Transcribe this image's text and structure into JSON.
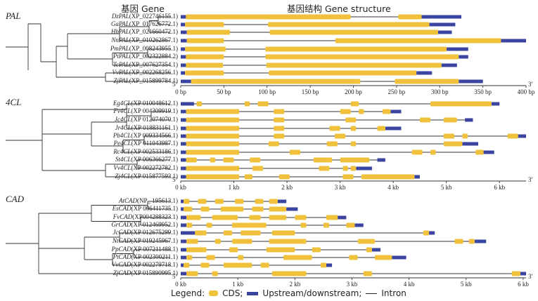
{
  "header": {
    "gene_col": "基因 Gene",
    "structure_col": "基因结构 Gene structure"
  },
  "colors": {
    "cds": "#f0c23b",
    "utr": "#3b45a0",
    "intron": "#333333"
  },
  "panels": [
    {
      "family": "PAL",
      "axis": {
        "max": 400,
        "ticks": [
          "0 bp",
          "50 bp",
          "100 bp",
          "150 bp",
          "200 bp",
          "250 bp",
          "300 bp",
          "350 bp",
          "400 bp"
        ],
        "start_mark": "5′",
        "end_mark": "3′"
      },
      "genes": [
        {
          "abbr": "Dz",
          "name": "PAL",
          "acc": "(XP_022746155.1)",
          "length": 325,
          "utr": [
            [
              0,
              6
            ],
            [
              279,
              325
            ]
          ],
          "cds": [
            [
              6,
              197
            ],
            [
              252,
              279
            ]
          ]
        },
        {
          "abbr": "Ga",
          "name": "PAL",
          "acc": "(XP_017626772.1)",
          "length": 318,
          "utr": [
            [
              0,
              5
            ],
            [
              288,
              318
            ]
          ],
          "cds": [
            [
              5,
              50
            ],
            [
              101,
              288
            ]
          ]
        },
        {
          "abbr": "Hb",
          "name": "PAL",
          "acc": "(XP_021660472.1)",
          "length": 314,
          "utr": [
            [
              0,
              7
            ],
            [
              298,
              314
            ]
          ],
          "cds": [
            [
              7,
              57
            ],
            [
              103,
              298
            ]
          ]
        },
        {
          "abbr": "Nn",
          "name": "PAL",
          "acc": "(XP_010262867.1)",
          "length": 400,
          "utr": [
            [
              0,
              7
            ],
            [
              371,
              400
            ]
          ],
          "cds": [
            [
              7,
              50
            ],
            [
              179,
              371
            ]
          ]
        },
        {
          "abbr": "Pm",
          "name": "PAL",
          "acc": "(XP_008243955.1)",
          "length": 333,
          "utr": [
            [
              0,
              5
            ],
            [
              308,
              333
            ]
          ],
          "cds": [
            [
              5,
              52
            ],
            [
              98,
              308
            ]
          ]
        },
        {
          "abbr": "Pt",
          "name": "PAL",
          "acc": "(XP_002322884.2)",
          "length": 333,
          "utr": [
            [
              0,
              6
            ],
            [
              322,
              333
            ]
          ],
          "cds": [
            [
              6,
              50
            ],
            [
              98,
              322
            ]
          ]
        },
        {
          "abbr": "Tc",
          "name": "PAL",
          "acc": "(XP_007627354.1)",
          "length": 320,
          "utr": [
            [
              0,
              6
            ],
            [
              302,
              320
            ]
          ],
          "cds": [
            [
              6,
              49
            ],
            [
              99,
              302
            ]
          ]
        },
        {
          "abbr": "Vv",
          "name": "PAL",
          "acc": "(XP_002268256.1)",
          "length": 291,
          "utr": [
            [
              0,
              5
            ],
            [
              273,
              291
            ]
          ],
          "cds": [
            [
              5,
              50
            ],
            [
              102,
              273
            ]
          ]
        },
        {
          "abbr": "Zj",
          "name": "PAL",
          "acc": "(XP_015899784.1)",
          "length": 350,
          "utr": [
            [
              0,
              12
            ],
            [
              322,
              350
            ]
          ],
          "cds": [
            [
              12,
              208
            ],
            [
              248,
              322
            ]
          ]
        }
      ]
    },
    {
      "family": "4CL",
      "axis": {
        "max": 6.5,
        "ticks": [
          "0 kb",
          "1 kb",
          "2 kb",
          "3 kb",
          "4 kb",
          "5 kb",
          "6 kb"
        ],
        "start_mark": "5′",
        "end_mark": "3′"
      },
      "genes": [
        {
          "abbr": "Eg",
          "name": "4CL",
          "acc": "(XP 010048612.1)",
          "length": 6.0,
          "utr": [
            [
              0,
              0.25
            ],
            [
              5.85,
              6.0
            ]
          ],
          "cds": [
            [
              0.3,
              0.4
            ],
            [
              1.2,
              1.3
            ],
            [
              1.45,
              1.65
            ],
            [
              3.2,
              3.35
            ],
            [
              4.7,
              5.85
            ]
          ]
        },
        {
          "abbr": "Fv",
          "name": "4CL",
          "acc": "(XP 004309919.1)",
          "length": 4.15,
          "utr": [
            [
              0,
              0.1
            ],
            [
              3.95,
              4.15
            ]
          ],
          "cds": [
            [
              0.1,
              1.1
            ],
            [
              1.75,
              1.95
            ],
            [
              3.0,
              3.2
            ],
            [
              3.35,
              3.45
            ],
            [
              3.8,
              3.95
            ]
          ]
        },
        {
          "abbr": "Jc",
          "name": "4CL",
          "acc": "(XP 012074070.1)",
          "length": 5.5,
          "utr": [
            [
              0,
              0.1
            ],
            [
              5.35,
              5.5
            ]
          ],
          "cds": [
            [
              0.1,
              1.1
            ],
            [
              1.75,
              1.95
            ],
            [
              3.1,
              3.3
            ],
            [
              4.5,
              4.7
            ],
            [
              4.95,
              5.2
            ]
          ]
        },
        {
          "abbr": "Jr",
          "name": "4CL",
          "acc": "(XP 018831161.1)",
          "length": 4.15,
          "utr": [
            [
              0,
              0.1
            ],
            [
              3.85,
              4.15
            ]
          ],
          "cds": [
            [
              0.1,
              1.1
            ],
            [
              1.75,
              1.95
            ],
            [
              2.8,
              3.0
            ],
            [
              3.2,
              3.3
            ],
            [
              3.7,
              3.85
            ]
          ]
        },
        {
          "abbr": "Pb",
          "name": "4CL",
          "acc": "(XP 009334566.1)",
          "length": 6.5,
          "utr": [
            [
              0,
              0.1
            ],
            [
              6.35,
              6.5
            ]
          ],
          "cds": [
            [
              0.1,
              1.1
            ],
            [
              1.75,
              1.95
            ],
            [
              2.9,
              3.1
            ],
            [
              4.95,
              5.15
            ],
            [
              5.3,
              5.4
            ],
            [
              6.15,
              6.35
            ]
          ]
        },
        {
          "abbr": "Pe",
          "name": "4CL",
          "acc": "(XP 011043987.1)",
          "length": 5.6,
          "utr": [
            [
              0,
              0.1
            ],
            [
              5.3,
              5.6
            ]
          ],
          "cds": [
            [
              0.1,
              1.1
            ],
            [
              1.65,
              1.85
            ],
            [
              2.75,
              2.95
            ],
            [
              3.2,
              3.3
            ],
            [
              4.95,
              5.3
            ]
          ]
        },
        {
          "abbr": "Rc",
          "name": "4CL",
          "acc": "(XP 002533186.1)",
          "length": 5.9,
          "utr": [
            [
              0,
              0.1
            ],
            [
              5.7,
              5.9
            ]
          ],
          "cds": [
            [
              0.1,
              1.1
            ],
            [
              2.05,
              2.25
            ],
            [
              4.35,
              4.55
            ],
            [
              4.7,
              4.8
            ],
            [
              5.55,
              5.7
            ]
          ]
        },
        {
          "abbr": "St",
          "name": "4CL",
          "acc": "(XP 006366277.1)",
          "length": 3.85,
          "utr": [
            [
              0,
              0.1
            ],
            [
              3.7,
              3.85
            ]
          ],
          "cds": [
            [
              0.1,
              0.3
            ],
            [
              0.55,
              0.65
            ],
            [
              0.8,
              1.0
            ],
            [
              1.3,
              1.5
            ],
            [
              2.5,
              2.85
            ],
            [
              3.0,
              3.55
            ]
          ]
        },
        {
          "abbr": "Vv",
          "name": "4CL",
          "acc": "(XP 002272782.1)",
          "length": 3.6,
          "utr": [
            [
              0,
              0.1
            ],
            [
              3.3,
              3.6
            ]
          ],
          "cds": [
            [
              0.1,
              1.1
            ],
            [
              1.35,
              1.55
            ],
            [
              2.6,
              2.8
            ],
            [
              3.05,
              3.15
            ],
            [
              3.2,
              3.3
            ]
          ]
        },
        {
          "abbr": "Zj",
          "name": "4CL",
          "acc": "(XP 015877593.1)",
          "length": 4.5,
          "utr": [
            [
              0,
              0.1
            ],
            [
              4.4,
              4.5
            ]
          ],
          "cds": [
            [
              0.1,
              1.1
            ],
            [
              0.95,
              1.1
            ],
            [
              1.2,
              1.35
            ],
            [
              1.85,
              2.05
            ],
            [
              3.05,
              3.25
            ],
            [
              3.4,
              4.4
            ]
          ]
        }
      ]
    },
    {
      "family": "CAD",
      "axis": {
        "max": 6.05,
        "ticks": [
          "0 kb",
          "1 kb",
          "2 kb",
          "3 kb",
          "4 kb",
          "5 kb",
          "6 kb"
        ],
        "start_mark": "5′",
        "end_mark": "3′"
      },
      "genes": [
        {
          "abbr": "At",
          "name": "CAD",
          "acc": "(NP_ 195613.1)",
          "length": 1.85,
          "utr": [
            [
              0,
              0.05
            ],
            [
              1.7,
              1.85
            ]
          ],
          "cds": [
            [
              0.05,
              0.15
            ],
            [
              0.3,
              0.45
            ],
            [
              0.6,
              0.75
            ],
            [
              0.95,
              1.1
            ],
            [
              1.3,
              1.45
            ],
            [
              1.55,
              1.7
            ]
          ]
        },
        {
          "abbr": "Es",
          "name": "CAD",
          "acc": "(XP 006411735.1)",
          "length": 2.05,
          "utr": [
            [
              0,
              0.05
            ],
            [
              1.85,
              2.05
            ]
          ],
          "cds": [
            [
              0.05,
              0.2
            ],
            [
              0.35,
              0.5
            ],
            [
              0.7,
              1.1
            ],
            [
              1.25,
              1.45
            ],
            [
              1.55,
              1.85
            ]
          ]
        },
        {
          "abbr": "Fv",
          "name": "CAD",
          "acc": "(XP004288323.1)",
          "length": 2.9,
          "utr": [
            [
              0,
              0.1
            ],
            [
              2.75,
              2.9
            ]
          ],
          "cds": [
            [
              0.1,
              0.35
            ],
            [
              0.55,
              1.0
            ],
            [
              1.2,
              1.4
            ],
            [
              1.55,
              1.85
            ],
            [
              2.0,
              2.2
            ],
            [
              2.55,
              2.75
            ]
          ]
        },
        {
          "abbr": "Gr",
          "name": "CAD",
          "acc": "(XP 012469952.1)",
          "length": 3.2,
          "utr": [
            [
              0,
              0.1
            ],
            [
              3.05,
              3.2
            ]
          ],
          "cds": [
            [
              0.1,
              0.2
            ],
            [
              0.45,
              0.55
            ],
            [
              0.9,
              1.5
            ],
            [
              2.1,
              2.2
            ],
            [
              2.5,
              2.6
            ],
            [
              2.9,
              3.05
            ]
          ]
        },
        {
          "abbr": "Jc",
          "name": "CAD",
          "acc": "(XP 012675299.1)",
          "length": 4.45,
          "utr": [
            [
              0,
              0.25
            ],
            [
              4.35,
              4.45
            ]
          ],
          "cds": [
            [
              0.25,
              0.45
            ],
            [
              0.75,
              0.9
            ],
            [
              1.05,
              1.4
            ],
            [
              1.6,
              2.0
            ],
            [
              4.25,
              4.35
            ]
          ]
        },
        {
          "abbr": "Nt",
          "name": "CAD",
          "acc": "(XP 019245967.1)",
          "length": 5.35,
          "utr": [
            [
              0,
              0.1
            ],
            [
              5.15,
              5.35
            ]
          ],
          "cds": [
            [
              0.1,
              0.3
            ],
            [
              0.6,
              0.7
            ],
            [
              0.9,
              1.25
            ],
            [
              1.55,
              2.2
            ],
            [
              3.1,
              3.4
            ],
            [
              4.8,
              4.95
            ],
            [
              5.05,
              5.15
            ]
          ]
        },
        {
          "abbr": "Pp",
          "name": "CAD",
          "acc": "(XP 007211488.1)",
          "length": 3.5,
          "utr": [
            [
              0,
              0.1
            ],
            [
              3.35,
              3.5
            ]
          ],
          "cds": [
            [
              0.1,
              0.45
            ],
            [
              0.85,
              1.0
            ],
            [
              1.5,
              2.0
            ],
            [
              2.3,
              2.45
            ],
            [
              3.25,
              3.35
            ]
          ]
        },
        {
          "abbr": "Pt",
          "name": "CAD",
          "acc": "(XP 002300211.1)",
          "length": 3.95,
          "utr": [
            [
              0,
              0.1
            ],
            [
              3.7,
              3.95
            ]
          ],
          "cds": [
            [
              0.1,
              0.2
            ],
            [
              0.45,
              0.6
            ],
            [
              1.0,
              1.1
            ],
            [
              1.8,
              2.3
            ],
            [
              2.95,
              3.1
            ],
            [
              3.4,
              3.7
            ]
          ]
        },
        {
          "abbr": "Vv",
          "name": "CAD",
          "acc": "(XP 002279718.1)",
          "length": 2.65,
          "utr": [
            [
              0,
              0.05
            ],
            [
              2.55,
              2.65
            ]
          ],
          "cds": [
            [
              0.05,
              0.15
            ],
            [
              0.35,
              0.5
            ],
            [
              0.75,
              1.25
            ],
            [
              1.4,
              1.55
            ],
            [
              2.45,
              2.55
            ]
          ]
        },
        {
          "abbr": "Zj",
          "name": "CAD",
          "acc": "(XP 015890995.1)",
          "length": 6.05,
          "utr": [
            [
              0,
              0.1
            ],
            [
              5.95,
              6.05
            ]
          ],
          "cds": [
            [
              0.1,
              0.3
            ],
            [
              0.55,
              0.65
            ],
            [
              1.6,
              2.2
            ],
            [
              3.2,
              3.35
            ],
            [
              5.8,
              5.95
            ]
          ]
        }
      ]
    }
  ],
  "legend": {
    "label": "Legend:",
    "cds": "CDS;",
    "utr": "Upstream/downstream;",
    "intron": "Intron"
  }
}
